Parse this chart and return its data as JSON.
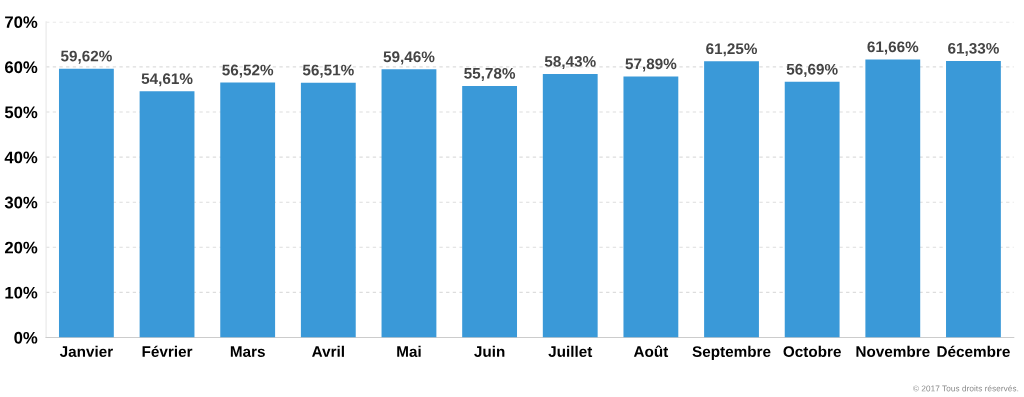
{
  "chart_data": {
    "type": "bar",
    "categories": [
      "Janvier",
      "Février",
      "Mars",
      "Avril",
      "Mai",
      "Juin",
      "Juillet",
      "Août",
      "Septembre",
      "Octobre",
      "Novembre",
      "Décembre"
    ],
    "values": [
      59.62,
      54.61,
      56.52,
      56.51,
      59.46,
      55.78,
      58.43,
      57.89,
      61.25,
      56.69,
      61.66,
      61.33
    ],
    "value_labels": [
      "59,62%",
      "54,61%",
      "56,52%",
      "56,51%",
      "59,46%",
      "55,78%",
      "58,43%",
      "57,89%",
      "61,25%",
      "56,69%",
      "61,66%",
      "61,33%"
    ],
    "color": "#3a99d8",
    "ylim": [
      0,
      70
    ],
    "yticks": [
      {
        "value": 0,
        "label": "0%"
      },
      {
        "value": 10,
        "label": "10%"
      },
      {
        "value": 20,
        "label": "20%"
      },
      {
        "value": 30,
        "label": "30%"
      },
      {
        "value": 40,
        "label": "40%"
      },
      {
        "value": 50,
        "label": "50%"
      },
      {
        "value": 60,
        "label": "60%"
      },
      {
        "value": 70,
        "label": "70%"
      }
    ],
    "grid": "y",
    "annotations": [
      "© 2017 Tous droits réservés."
    ]
  }
}
